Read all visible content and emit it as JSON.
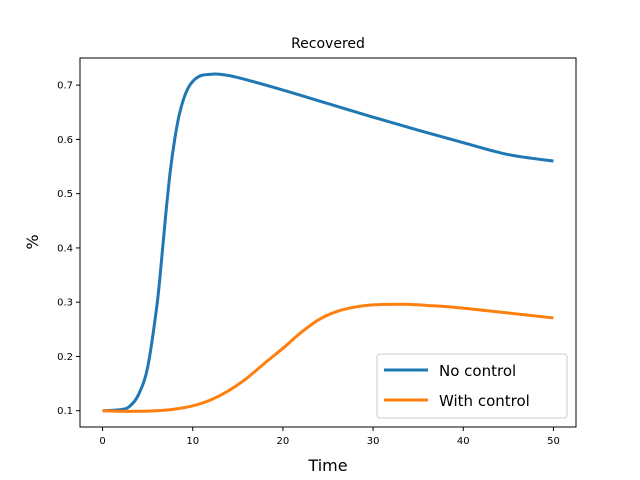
{
  "chart_data": {
    "type": "line",
    "title": "Recovered",
    "xlabel": "Time",
    "ylabel": "%",
    "xlim": [
      -2.5,
      52.5
    ],
    "ylim": [
      0.07,
      0.75
    ],
    "xticks": [
      0,
      10,
      20,
      30,
      40,
      50
    ],
    "yticks": [
      0.1,
      0.2,
      0.3,
      0.4,
      0.5,
      0.6,
      0.7
    ],
    "grid": false,
    "legend_position": "lower-right",
    "series": [
      {
        "name": "No control",
        "color": "#1f77b4",
        "x": [
          0,
          2,
          3,
          4,
          5,
          6,
          6.5,
          7,
          7.5,
          8,
          8.5,
          9,
          9.5,
          10,
          10.5,
          11,
          12,
          13,
          15,
          20,
          25,
          30,
          35,
          40,
          45,
          50
        ],
        "y": [
          0.1,
          0.102,
          0.108,
          0.13,
          0.18,
          0.29,
          0.37,
          0.46,
          0.54,
          0.6,
          0.645,
          0.675,
          0.695,
          0.707,
          0.714,
          0.718,
          0.72,
          0.72,
          0.714,
          0.691,
          0.666,
          0.641,
          0.617,
          0.594,
          0.572,
          0.56
        ]
      },
      {
        "name": "With control",
        "color": "#ff7f0e",
        "x": [
          0,
          2,
          4,
          6,
          8,
          10,
          12,
          14,
          16,
          18,
          20,
          22,
          24,
          26,
          28,
          30,
          32,
          34,
          36,
          38,
          40,
          45,
          50
        ],
        "y": [
          0.1,
          0.099,
          0.099,
          0.1,
          0.103,
          0.109,
          0.12,
          0.137,
          0.16,
          0.188,
          0.215,
          0.244,
          0.268,
          0.283,
          0.291,
          0.295,
          0.296,
          0.296,
          0.294,
          0.292,
          0.289,
          0.28,
          0.271
        ]
      }
    ]
  }
}
